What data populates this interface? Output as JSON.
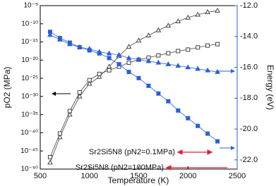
{
  "chart_data": {
    "type": "line",
    "x_label": "Temperature (K)",
    "y_label": "pO2 (MPa)",
    "y2_label": "Energy (eV)",
    "x": [
      600,
      700,
      800,
      900,
      1000,
      1100,
      1200,
      1300,
      1400,
      1500,
      1600,
      1700,
      1800,
      1900,
      2000,
      2100,
      2200,
      2300
    ],
    "xlim": [
      500,
      2500
    ],
    "xticks": [
      500,
      1000,
      1500,
      2000,
      2500
    ],
    "ylim": [
      1e-50,
      1e-05
    ],
    "log_y": true,
    "yticks": [
      {
        "value": 1e-05,
        "label": "10⁻⁵"
      },
      {
        "value": 1e-10,
        "label": "10⁻¹⁰"
      },
      {
        "value": 1e-15,
        "label": "10⁻¹⁵"
      },
      {
        "value": 1e-20,
        "label": "10⁻²⁰"
      },
      {
        "value": 1e-25,
        "label": "10⁻²⁵"
      },
      {
        "value": 1e-30,
        "label": "10⁻³⁰"
      },
      {
        "value": 1e-35,
        "label": "10⁻³⁵"
      },
      {
        "value": 1e-40,
        "label": "10⁻⁴⁰"
      },
      {
        "value": 1e-45,
        "label": "10⁻⁴⁵"
      },
      {
        "value": 1e-50,
        "label": "10⁻⁵⁰"
      }
    ],
    "y2lim": [
      -22.6,
      -12
    ],
    "y2_color": "#2a5fd8",
    "y2ticks": [
      {
        "value": -12,
        "label": "-12.0"
      },
      {
        "value": -14,
        "label": "-14.0"
      },
      {
        "value": -16,
        "label": "-16.0"
      },
      {
        "value": -18,
        "label": "-18.0"
      },
      {
        "value": -20,
        "label": "-20.0"
      },
      {
        "value": -22,
        "label": "-22.0"
      }
    ],
    "series": [
      {
        "color": "#444444",
        "marker": "triangle-open",
        "values": [
          6.3e-49,
          6.3e-42,
          1e-35,
          1e-30,
          3.2e-27,
          2.5e-25,
          1.6e-22,
          1.3e-19,
          5e-17,
          2.5e-15,
          6.3e-14,
          1.6e-12,
          3.2e-11,
          5e-10,
          5e-09,
          3.2e-08,
          1.6e-07,
          4e-07
        ]
      },
      {
        "color": "#444444",
        "marker": "square-open",
        "values": [
          2e-47,
          6.3e-41,
          1e-34,
          1.3e-29,
          3.2e-26,
          1.6e-24,
          1.6e-23,
          1.6e-22,
          2e-21,
          1.3e-20,
          5e-20,
          2e-19,
          7.9e-19,
          3.2e-18,
          7.9e-18,
          3.2e-17,
          1e-16,
          2.5e-16
        ]
      },
      {
        "color": "#2a5fd8",
        "marker": "square-filled",
        "axis": "y2",
        "values": [
          -13.7,
          -14.1,
          -14.4,
          -14.7,
          -14.9,
          -15.1,
          -15.4,
          -15.8,
          -16.3,
          -16.7,
          -17.2,
          -17.7,
          -18.2,
          -18.8,
          -19.3,
          -19.8,
          -20.3,
          -20.8
        ]
      },
      {
        "color": "#2a5fd8",
        "marker": "triangle-filled",
        "axis": "y2",
        "values": [
          -13.9,
          -14.2,
          -14.5,
          -14.7,
          -14.8,
          -15.0,
          -15.1,
          -15.2,
          -15.4,
          -15.5,
          -15.6,
          -15.7,
          -15.8,
          -15.9,
          -16.0,
          -16.1,
          -16.2,
          -16.3
        ]
      }
    ],
    "annotations": [
      "Sr2Si5N8 (pN2=0.1MPa)",
      "Sr2Si5N8 (pN2=100MPa)"
    ]
  }
}
